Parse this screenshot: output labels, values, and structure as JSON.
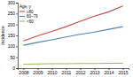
{
  "chart_data": {
    "type": "line",
    "x": [
      2008,
      2009,
      2010,
      2011,
      2012,
      2013,
      2014,
      2015
    ],
    "series": [
      {
        "name": "≥80",
        "color": "#c0504d",
        "values": [
          125,
          148,
          168,
          190,
          215,
          238,
          258,
          285
        ]
      },
      {
        "name": "60–79",
        "color": "#4f81bd",
        "values": [
          105,
          118,
          130,
          143,
          155,
          165,
          178,
          190
        ]
      },
      {
        "name": "<60",
        "color": "#9bbb59",
        "values": [
          18,
          19,
          20,
          20,
          21,
          21,
          22,
          22
        ]
      }
    ],
    "ylabel": "Incidence",
    "ylim": [
      0,
      300
    ],
    "yticks": [
      0,
      50,
      100,
      150,
      200,
      250,
      300
    ],
    "xlim": [
      2007.6,
      2015.4
    ],
    "xticks": [
      2008,
      2009,
      2010,
      2011,
      2012,
      2013,
      2014,
      2015
    ],
    "legend_title": "Age, y",
    "legend": "upper left",
    "grid": false
  }
}
